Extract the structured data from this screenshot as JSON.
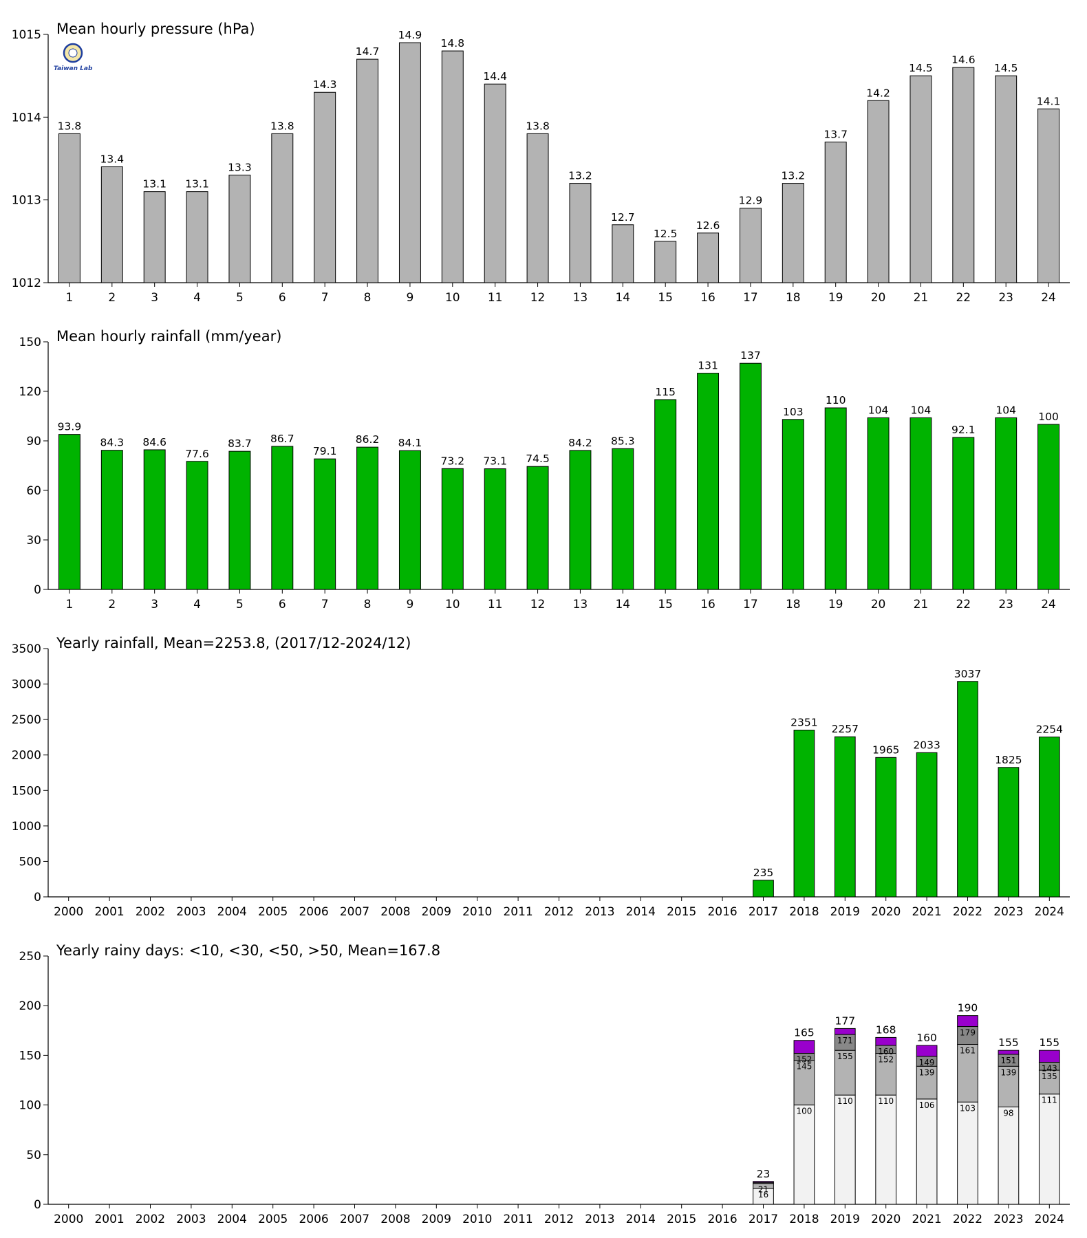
{
  "logo": {
    "text": "Taiwan Lab",
    "colors": {
      "ring": "#1f3f9f",
      "fill": "#f4e7a8",
      "text_a": "#d33",
      "text_b": "#2a2",
      "text_c": "#1f3f9f"
    }
  },
  "colors": {
    "pressure_bar": "#b3b3b3",
    "rain_bar": "#00b300",
    "days_lt10": "#f2f2f2",
    "days_lt30": "#b3b3b3",
    "days_lt50": "#888888",
    "days_gt50": "#9900cc"
  },
  "chart_data": [
    {
      "type": "bar",
      "title": "Mean hourly pressure (hPa)",
      "categories": [
        "1",
        "2",
        "3",
        "4",
        "5",
        "6",
        "7",
        "8",
        "9",
        "10",
        "11",
        "12",
        "13",
        "14",
        "15",
        "16",
        "17",
        "18",
        "19",
        "20",
        "21",
        "22",
        "23",
        "24"
      ],
      "values": [
        1013.8,
        1013.4,
        1013.1,
        1013.1,
        1013.3,
        1013.8,
        1014.3,
        1014.7,
        1014.9,
        1014.8,
        1014.4,
        1013.8,
        1013.2,
        1012.7,
        1012.5,
        1012.6,
        1012.9,
        1013.2,
        1013.7,
        1014.2,
        1014.5,
        1014.6,
        1014.5,
        1014.1
      ],
      "data_labels": [
        "13.8",
        "13.4",
        "13.1",
        "13.1",
        "13.3",
        "13.8",
        "14.3",
        "14.7",
        "14.9",
        "14.8",
        "14.4",
        "13.8",
        "13.2",
        "12.7",
        "12.5",
        "12.6",
        "12.9",
        "13.2",
        "13.7",
        "14.2",
        "14.5",
        "14.6",
        "14.5",
        "14.1"
      ],
      "ylim": [
        1012,
        1015
      ],
      "yticks": [
        1012,
        1013,
        1014,
        1015
      ],
      "ytick_labels": [
        "1012",
        "1013",
        "1014",
        "1015"
      ]
    },
    {
      "type": "bar",
      "title": "Mean hourly rainfall (mm/year)",
      "categories": [
        "1",
        "2",
        "3",
        "4",
        "5",
        "6",
        "7",
        "8",
        "9",
        "10",
        "11",
        "12",
        "13",
        "14",
        "15",
        "16",
        "17",
        "18",
        "19",
        "20",
        "21",
        "22",
        "23",
        "24"
      ],
      "values": [
        93.9,
        84.3,
        84.6,
        77.6,
        83.7,
        86.7,
        79.1,
        86.2,
        84.1,
        73.2,
        73.1,
        74.5,
        84.2,
        85.3,
        115,
        131,
        137,
        103,
        110,
        104,
        104,
        92.1,
        104,
        100
      ],
      "data_labels": [
        "93.9",
        "84.3",
        "84.6",
        "77.6",
        "83.7",
        "86.7",
        "79.1",
        "86.2",
        "84.1",
        "73.2",
        "73.1",
        "74.5",
        "84.2",
        "85.3",
        "115",
        "131",
        "137",
        "103",
        "110",
        "104",
        "104",
        "92.1",
        "104",
        "100"
      ],
      "ylim": [
        0,
        150
      ],
      "yticks": [
        0,
        30,
        60,
        90,
        120,
        150
      ],
      "ytick_labels": [
        "0",
        "30",
        "60",
        "90",
        "120",
        "150"
      ]
    },
    {
      "type": "bar",
      "title": "Yearly rainfall, Mean=2253.8, (2017/12-2024/12)",
      "categories": [
        "2000",
        "2001",
        "2002",
        "2003",
        "2004",
        "2005",
        "2006",
        "2007",
        "2008",
        "2009",
        "2010",
        "2011",
        "2012",
        "2013",
        "2014",
        "2015",
        "2016",
        "2017",
        "2018",
        "2019",
        "2020",
        "2021",
        "2022",
        "2023",
        "2024"
      ],
      "values": [
        null,
        null,
        null,
        null,
        null,
        null,
        null,
        null,
        null,
        null,
        null,
        null,
        null,
        null,
        null,
        null,
        null,
        235,
        2351,
        2257,
        1965,
        2033,
        3037,
        1825,
        2254
      ],
      "data_labels": [
        "",
        "",
        "",
        "",
        "",
        "",
        "",
        "",
        "",
        "",
        "",
        "",
        "",
        "",
        "",
        "",
        "",
        "235",
        "2351",
        "2257",
        "1965",
        "2033",
        "3037",
        "1825",
        "2254"
      ],
      "ylim": [
        0,
        3500
      ],
      "yticks": [
        0,
        500,
        1000,
        1500,
        2000,
        2500,
        3000,
        3500
      ],
      "ytick_labels": [
        "0",
        "500",
        "1000",
        "1500",
        "2000",
        "2500",
        "3000",
        "3500"
      ]
    },
    {
      "type": "bar",
      "stacked": true,
      "title": "Yearly rainy days: <10, <30, <50, >50, Mean=167.8",
      "categories": [
        "2000",
        "2001",
        "2002",
        "2003",
        "2004",
        "2005",
        "2006",
        "2007",
        "2008",
        "2009",
        "2010",
        "2011",
        "2012",
        "2013",
        "2014",
        "2015",
        "2016",
        "2017",
        "2018",
        "2019",
        "2020",
        "2021",
        "2022",
        "2023",
        "2024"
      ],
      "cumulative": [
        null,
        null,
        null,
        null,
        null,
        null,
        null,
        null,
        null,
        null,
        null,
        null,
        null,
        null,
        null,
        null,
        null,
        {
          "lt10": 16,
          "lt30": 21,
          "lt50": 22,
          "total": 23,
          "labels": [
            "16",
            "21",
            "",
            ""
          ],
          "total_label": "23"
        },
        {
          "lt10": 100,
          "lt30": 145,
          "lt50": 152,
          "total": 165,
          "labels": [
            "100",
            "145",
            "152",
            ""
          ],
          "total_label": "165"
        },
        {
          "lt10": 110,
          "lt30": 155,
          "lt50": 171,
          "total": 177,
          "labels": [
            "110",
            "155",
            "171",
            ""
          ],
          "total_label": "177"
        },
        {
          "lt10": 110,
          "lt30": 152,
          "lt50": 160,
          "total": 168,
          "labels": [
            "110",
            "152",
            "160",
            ""
          ],
          "total_label": "168"
        },
        {
          "lt10": 106,
          "lt30": 139,
          "lt50": 149,
          "total": 160,
          "labels": [
            "106",
            "139",
            "149",
            ""
          ],
          "total_label": "160"
        },
        {
          "lt10": 103,
          "lt30": 161,
          "lt50": 179,
          "total": 190,
          "labels": [
            "103",
            "161",
            "179",
            ""
          ],
          "total_label": "190"
        },
        {
          "lt10": 98,
          "lt30": 139,
          "lt50": 151,
          "total": 155,
          "labels": [
            "98",
            "139",
            "151",
            ""
          ],
          "total_label": "155"
        },
        {
          "lt10": 111,
          "lt30": 135,
          "lt50": 143,
          "total": 155,
          "labels": [
            "111",
            "135",
            "143",
            ""
          ],
          "total_label": "155"
        }
      ],
      "ylim": [
        0,
        250
      ],
      "yticks": [
        0,
        50,
        100,
        150,
        200,
        250
      ],
      "ytick_labels": [
        "0",
        "50",
        "100",
        "150",
        "200",
        "250"
      ]
    }
  ]
}
